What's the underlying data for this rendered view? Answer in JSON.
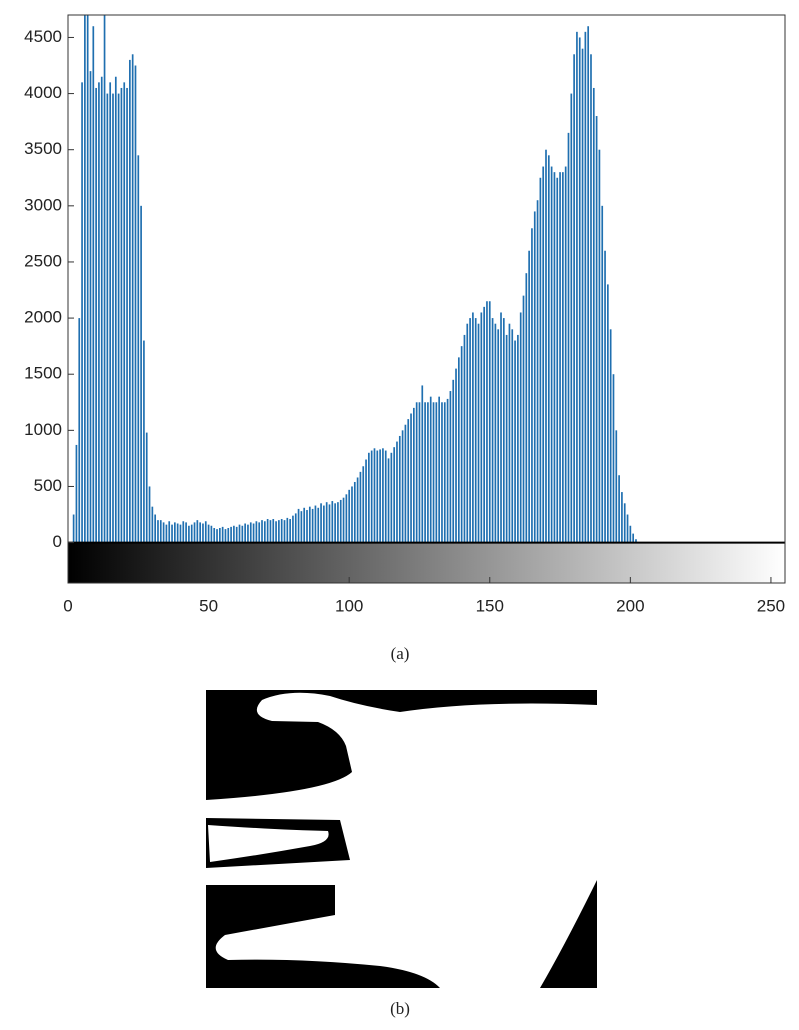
{
  "chart_data": {
    "type": "bar",
    "color": "#1f6fb0",
    "xlim": [
      0,
      255
    ],
    "ylim": [
      -360,
      4700
    ],
    "xticks": [
      0,
      50,
      100,
      150,
      200,
      250
    ],
    "yticks": [
      0,
      500,
      1000,
      1500,
      2000,
      2500,
      3000,
      3500,
      4000,
      4500
    ],
    "x": [
      0,
      1,
      2,
      3,
      4,
      5,
      6,
      7,
      8,
      9,
      10,
      11,
      12,
      13,
      14,
      15,
      16,
      17,
      18,
      19,
      20,
      21,
      22,
      23,
      24,
      25,
      26,
      27,
      28,
      29,
      30,
      31,
      32,
      33,
      34,
      35,
      36,
      37,
      38,
      39,
      40,
      41,
      42,
      43,
      44,
      45,
      46,
      47,
      48,
      49,
      50,
      51,
      52,
      53,
      54,
      55,
      56,
      57,
      58,
      59,
      60,
      61,
      62,
      63,
      64,
      65,
      66,
      67,
      68,
      69,
      70,
      71,
      72,
      73,
      74,
      75,
      76,
      77,
      78,
      79,
      80,
      81,
      82,
      83,
      84,
      85,
      86,
      87,
      88,
      89,
      90,
      91,
      92,
      93,
      94,
      95,
      96,
      97,
      98,
      99,
      100,
      101,
      102,
      103,
      104,
      105,
      106,
      107,
      108,
      109,
      110,
      111,
      112,
      113,
      114,
      115,
      116,
      117,
      118,
      119,
      120,
      121,
      122,
      123,
      124,
      125,
      126,
      127,
      128,
      129,
      130,
      131,
      132,
      133,
      134,
      135,
      136,
      137,
      138,
      139,
      140,
      141,
      142,
      143,
      144,
      145,
      146,
      147,
      148,
      149,
      150,
      151,
      152,
      153,
      154,
      155,
      156,
      157,
      158,
      159,
      160,
      161,
      162,
      163,
      164,
      165,
      166,
      167,
      168,
      169,
      170,
      171,
      172,
      173,
      174,
      175,
      176,
      177,
      178,
      179,
      180,
      181,
      182,
      183,
      184,
      185,
      186,
      187,
      188,
      189,
      190,
      191,
      192,
      193,
      194,
      195,
      196,
      197,
      198,
      199,
      200,
      201,
      202
    ],
    "values": [
      0,
      0,
      250,
      870,
      2000,
      4100,
      4700,
      4700,
      4200,
      4600,
      4050,
      4100,
      4150,
      4700,
      4000,
      4100,
      4000,
      4150,
      4000,
      4050,
      4100,
      4050,
      4300,
      4350,
      4250,
      3450,
      3000,
      1800,
      980,
      500,
      320,
      250,
      200,
      200,
      180,
      160,
      190,
      160,
      180,
      170,
      160,
      190,
      180,
      150,
      160,
      180,
      200,
      180,
      170,
      190,
      160,
      150,
      130,
      120,
      130,
      140,
      120,
      130,
      140,
      150,
      140,
      160,
      150,
      170,
      160,
      180,
      170,
      190,
      180,
      200,
      190,
      210,
      200,
      210,
      190,
      200,
      210,
      200,
      220,
      210,
      240,
      260,
      300,
      280,
      310,
      290,
      320,
      300,
      330,
      310,
      350,
      330,
      360,
      340,
      370,
      350,
      360,
      380,
      400,
      430,
      470,
      500,
      540,
      580,
      630,
      680,
      740,
      800,
      820,
      840,
      820,
      830,
      840,
      820,
      750,
      800,
      850,
      900,
      950,
      1000,
      1050,
      1100,
      1150,
      1200,
      1250,
      1250,
      1400,
      1250,
      1250,
      1300,
      1250,
      1250,
      1300,
      1250,
      1250,
      1280,
      1350,
      1450,
      1550,
      1650,
      1750,
      1850,
      1950,
      2000,
      2050,
      2000,
      1950,
      2050,
      2100,
      2150,
      2150,
      2000,
      1950,
      1900,
      2050,
      2000,
      1850,
      1950,
      1900,
      1800,
      1850,
      2050,
      2200,
      2400,
      2600,
      2800,
      2950,
      3050,
      3250,
      3350,
      3500,
      3450,
      3350,
      3300,
      3250,
      3300,
      3300,
      3350,
      3650,
      4000,
      4350,
      4550,
      4500,
      4400,
      4550,
      4600,
      4350,
      4050,
      3800,
      3500,
      3000,
      2600,
      2300,
      1900,
      1500,
      1000,
      600,
      450,
      350,
      250,
      150,
      80,
      30
    ]
  },
  "captions": [
    "(a)",
    "(b)"
  ]
}
